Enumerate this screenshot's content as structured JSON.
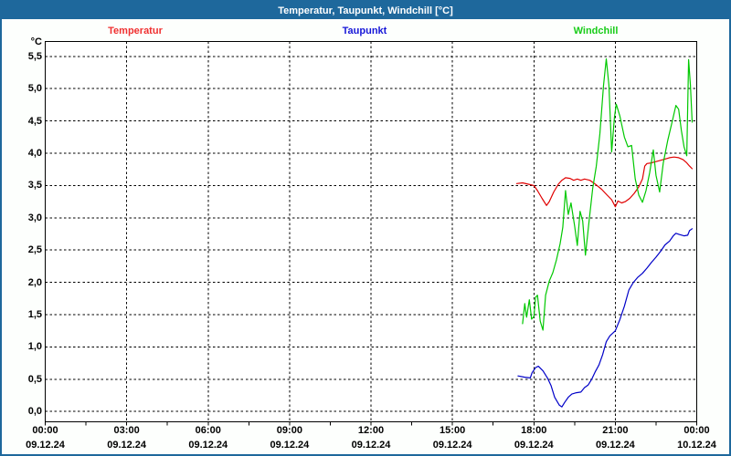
{
  "window": {
    "title": "Temperatur, Taupunkt, Windchill [°C]"
  },
  "colors": {
    "titlebar_bg": "#1e689c",
    "window_border": "#1e689c",
    "page_bg": "#fdfffd",
    "plot_bg": "#ffffff",
    "axis": "#000000",
    "temperatur": "#e00000",
    "taupunkt": "#0000c8",
    "windchill": "#00c800"
  },
  "legend": [
    {
      "label": "Temperatur",
      "series": "temperatur"
    },
    {
      "label": "Taupunkt",
      "series": "taupunkt"
    },
    {
      "label": "Windchill",
      "series": "windchill"
    }
  ],
  "chart_data": {
    "type": "line",
    "title": "Temperatur, Taupunkt, Windchill [°C]",
    "ylabel": "°C",
    "xlabel": "",
    "grid": "dashed, horizontal every 0.5 °C and vertical every 3 h",
    "legend_position": "top",
    "ylim": [
      -0.16,
      5.73
    ],
    "xlim_hours": [
      0,
      24
    ],
    "y_ticks": [
      {
        "value": 5.5,
        "label": "5,5"
      },
      {
        "value": 5.0,
        "label": "5,0"
      },
      {
        "value": 4.5,
        "label": "4,5"
      },
      {
        "value": 4.0,
        "label": "4,0"
      },
      {
        "value": 3.5,
        "label": "3,5"
      },
      {
        "value": 3.0,
        "label": "3,0"
      },
      {
        "value": 2.5,
        "label": "2,5"
      },
      {
        "value": 2.0,
        "label": "2,0"
      },
      {
        "value": 1.5,
        "label": "1,5"
      },
      {
        "value": 1.0,
        "label": "1,0"
      },
      {
        "value": 0.5,
        "label": "0,5"
      },
      {
        "value": 0.0,
        "label": "0,0"
      }
    ],
    "x_ticks": [
      {
        "minutes": 0,
        "time": "00:00",
        "date": "09.12.24"
      },
      {
        "minutes": 180,
        "time": "03:00",
        "date": "09.12.24"
      },
      {
        "minutes": 360,
        "time": "06:00",
        "date": "09.12.24"
      },
      {
        "minutes": 540,
        "time": "09:00",
        "date": "09.12.24"
      },
      {
        "minutes": 720,
        "time": "12:00",
        "date": "09.12.24"
      },
      {
        "minutes": 900,
        "time": "15:00",
        "date": "09.12.24"
      },
      {
        "minutes": 1080,
        "time": "18:00",
        "date": "09.12.24"
      },
      {
        "minutes": 1260,
        "time": "21:00",
        "date": "09.12.24"
      },
      {
        "minutes": 1440,
        "time": "00:00",
        "date": "10.12.24"
      }
    ],
    "minor_tick_minutes": 90,
    "series": [
      {
        "name": "Temperatur",
        "color": "#e00000",
        "points": [
          [
            "17:22",
            3.53
          ],
          [
            "17:35",
            3.54
          ],
          [
            "17:48",
            3.52
          ],
          [
            "18:00",
            3.5
          ],
          [
            "18:08",
            3.42
          ],
          [
            "18:18",
            3.3
          ],
          [
            "18:28",
            3.19
          ],
          [
            "18:34",
            3.25
          ],
          [
            "18:44",
            3.4
          ],
          [
            "18:54",
            3.52
          ],
          [
            "19:02",
            3.58
          ],
          [
            "19:10",
            3.62
          ],
          [
            "19:20",
            3.61
          ],
          [
            "19:28",
            3.58
          ],
          [
            "19:36",
            3.6
          ],
          [
            "19:44",
            3.58
          ],
          [
            "19:52",
            3.6
          ],
          [
            "20:04",
            3.58
          ],
          [
            "20:16",
            3.52
          ],
          [
            "20:30",
            3.44
          ],
          [
            "20:42",
            3.35
          ],
          [
            "20:52",
            3.28
          ],
          [
            "21:00",
            3.17
          ],
          [
            "21:06",
            3.26
          ],
          [
            "21:14",
            3.23
          ],
          [
            "21:22",
            3.25
          ],
          [
            "21:32",
            3.3
          ],
          [
            "21:42",
            3.38
          ],
          [
            "21:52",
            3.48
          ],
          [
            "22:00",
            3.6
          ],
          [
            "22:05",
            3.8
          ],
          [
            "22:10",
            3.84
          ],
          [
            "22:20",
            3.85
          ],
          [
            "22:30",
            3.87
          ],
          [
            "22:40",
            3.89
          ],
          [
            "22:50",
            3.91
          ],
          [
            "23:00",
            3.93
          ],
          [
            "23:10",
            3.94
          ],
          [
            "23:20",
            3.93
          ],
          [
            "23:30",
            3.9
          ],
          [
            "23:38",
            3.85
          ],
          [
            "23:44",
            3.8
          ],
          [
            "23:50",
            3.76
          ]
        ]
      },
      {
        "name": "Taupunkt",
        "color": "#0000c8",
        "points": [
          [
            "17:25",
            0.55
          ],
          [
            "17:40",
            0.53
          ],
          [
            "17:52",
            0.52
          ],
          [
            "17:56",
            0.6
          ],
          [
            "18:04",
            0.68
          ],
          [
            "18:10",
            0.7
          ],
          [
            "18:20",
            0.63
          ],
          [
            "18:30",
            0.52
          ],
          [
            "18:38",
            0.4
          ],
          [
            "18:46",
            0.22
          ],
          [
            "18:56",
            0.1
          ],
          [
            "19:02",
            0.07
          ],
          [
            "19:08",
            0.14
          ],
          [
            "19:16",
            0.22
          ],
          [
            "19:24",
            0.27
          ],
          [
            "19:34",
            0.29
          ],
          [
            "19:44",
            0.3
          ],
          [
            "19:52",
            0.37
          ],
          [
            "20:00",
            0.41
          ],
          [
            "20:08",
            0.5
          ],
          [
            "20:16",
            0.62
          ],
          [
            "20:24",
            0.72
          ],
          [
            "20:32",
            0.88
          ],
          [
            "20:40",
            1.08
          ],
          [
            "20:48",
            1.17
          ],
          [
            "21:00",
            1.25
          ],
          [
            "21:10",
            1.42
          ],
          [
            "21:20",
            1.63
          ],
          [
            "21:30",
            1.88
          ],
          [
            "21:40",
            2.0
          ],
          [
            "21:50",
            2.08
          ],
          [
            "22:00",
            2.14
          ],
          [
            "22:10",
            2.22
          ],
          [
            "22:20",
            2.31
          ],
          [
            "22:30",
            2.39
          ],
          [
            "22:40",
            2.48
          ],
          [
            "22:50",
            2.58
          ],
          [
            "23:00",
            2.64
          ],
          [
            "23:08",
            2.72
          ],
          [
            "23:14",
            2.76
          ],
          [
            "23:22",
            2.74
          ],
          [
            "23:32",
            2.72
          ],
          [
            "23:40",
            2.73
          ],
          [
            "23:44",
            2.8
          ],
          [
            "23:50",
            2.83
          ]
        ]
      },
      {
        "name": "Windchill",
        "color": "#00c800",
        "points": [
          [
            "17:35",
            1.36
          ],
          [
            "17:40",
            1.67
          ],
          [
            "17:44",
            1.46
          ],
          [
            "17:50",
            1.73
          ],
          [
            "17:55",
            1.43
          ],
          [
            "18:00",
            1.47
          ],
          [
            "18:04",
            1.77
          ],
          [
            "18:08",
            1.8
          ],
          [
            "18:14",
            1.4
          ],
          [
            "18:20",
            1.26
          ],
          [
            "18:26",
            1.8
          ],
          [
            "18:34",
            2.02
          ],
          [
            "18:42",
            2.15
          ],
          [
            "18:50",
            2.35
          ],
          [
            "18:58",
            2.6
          ],
          [
            "19:04",
            2.85
          ],
          [
            "19:10",
            3.42
          ],
          [
            "19:16",
            3.05
          ],
          [
            "19:22",
            3.23
          ],
          [
            "19:30",
            2.88
          ],
          [
            "19:36",
            2.57
          ],
          [
            "19:42",
            3.1
          ],
          [
            "19:48",
            2.95
          ],
          [
            "19:54",
            2.42
          ],
          [
            "20:02",
            2.95
          ],
          [
            "20:10",
            3.45
          ],
          [
            "20:18",
            3.8
          ],
          [
            "20:26",
            4.3
          ],
          [
            "20:34",
            5.05
          ],
          [
            "20:40",
            5.46
          ],
          [
            "20:46",
            5.05
          ],
          [
            "20:52",
            4.02
          ],
          [
            "20:58",
            4.55
          ],
          [
            "21:02",
            4.76
          ],
          [
            "21:10",
            4.58
          ],
          [
            "21:20",
            4.25
          ],
          [
            "21:28",
            4.1
          ],
          [
            "21:36",
            4.12
          ],
          [
            "21:44",
            3.6
          ],
          [
            "21:52",
            3.35
          ],
          [
            "22:00",
            3.24
          ],
          [
            "22:08",
            3.42
          ],
          [
            "22:16",
            3.7
          ],
          [
            "22:24",
            4.05
          ],
          [
            "22:30",
            3.66
          ],
          [
            "22:38",
            3.4
          ],
          [
            "22:46",
            3.85
          ],
          [
            "22:56",
            4.2
          ],
          [
            "23:06",
            4.5
          ],
          [
            "23:14",
            4.74
          ],
          [
            "23:20",
            4.68
          ],
          [
            "23:26",
            4.35
          ],
          [
            "23:32",
            4.1
          ],
          [
            "23:38",
            3.96
          ],
          [
            "23:42",
            5.45
          ],
          [
            "23:46",
            5.05
          ],
          [
            "23:50",
            4.48
          ]
        ]
      }
    ]
  }
}
